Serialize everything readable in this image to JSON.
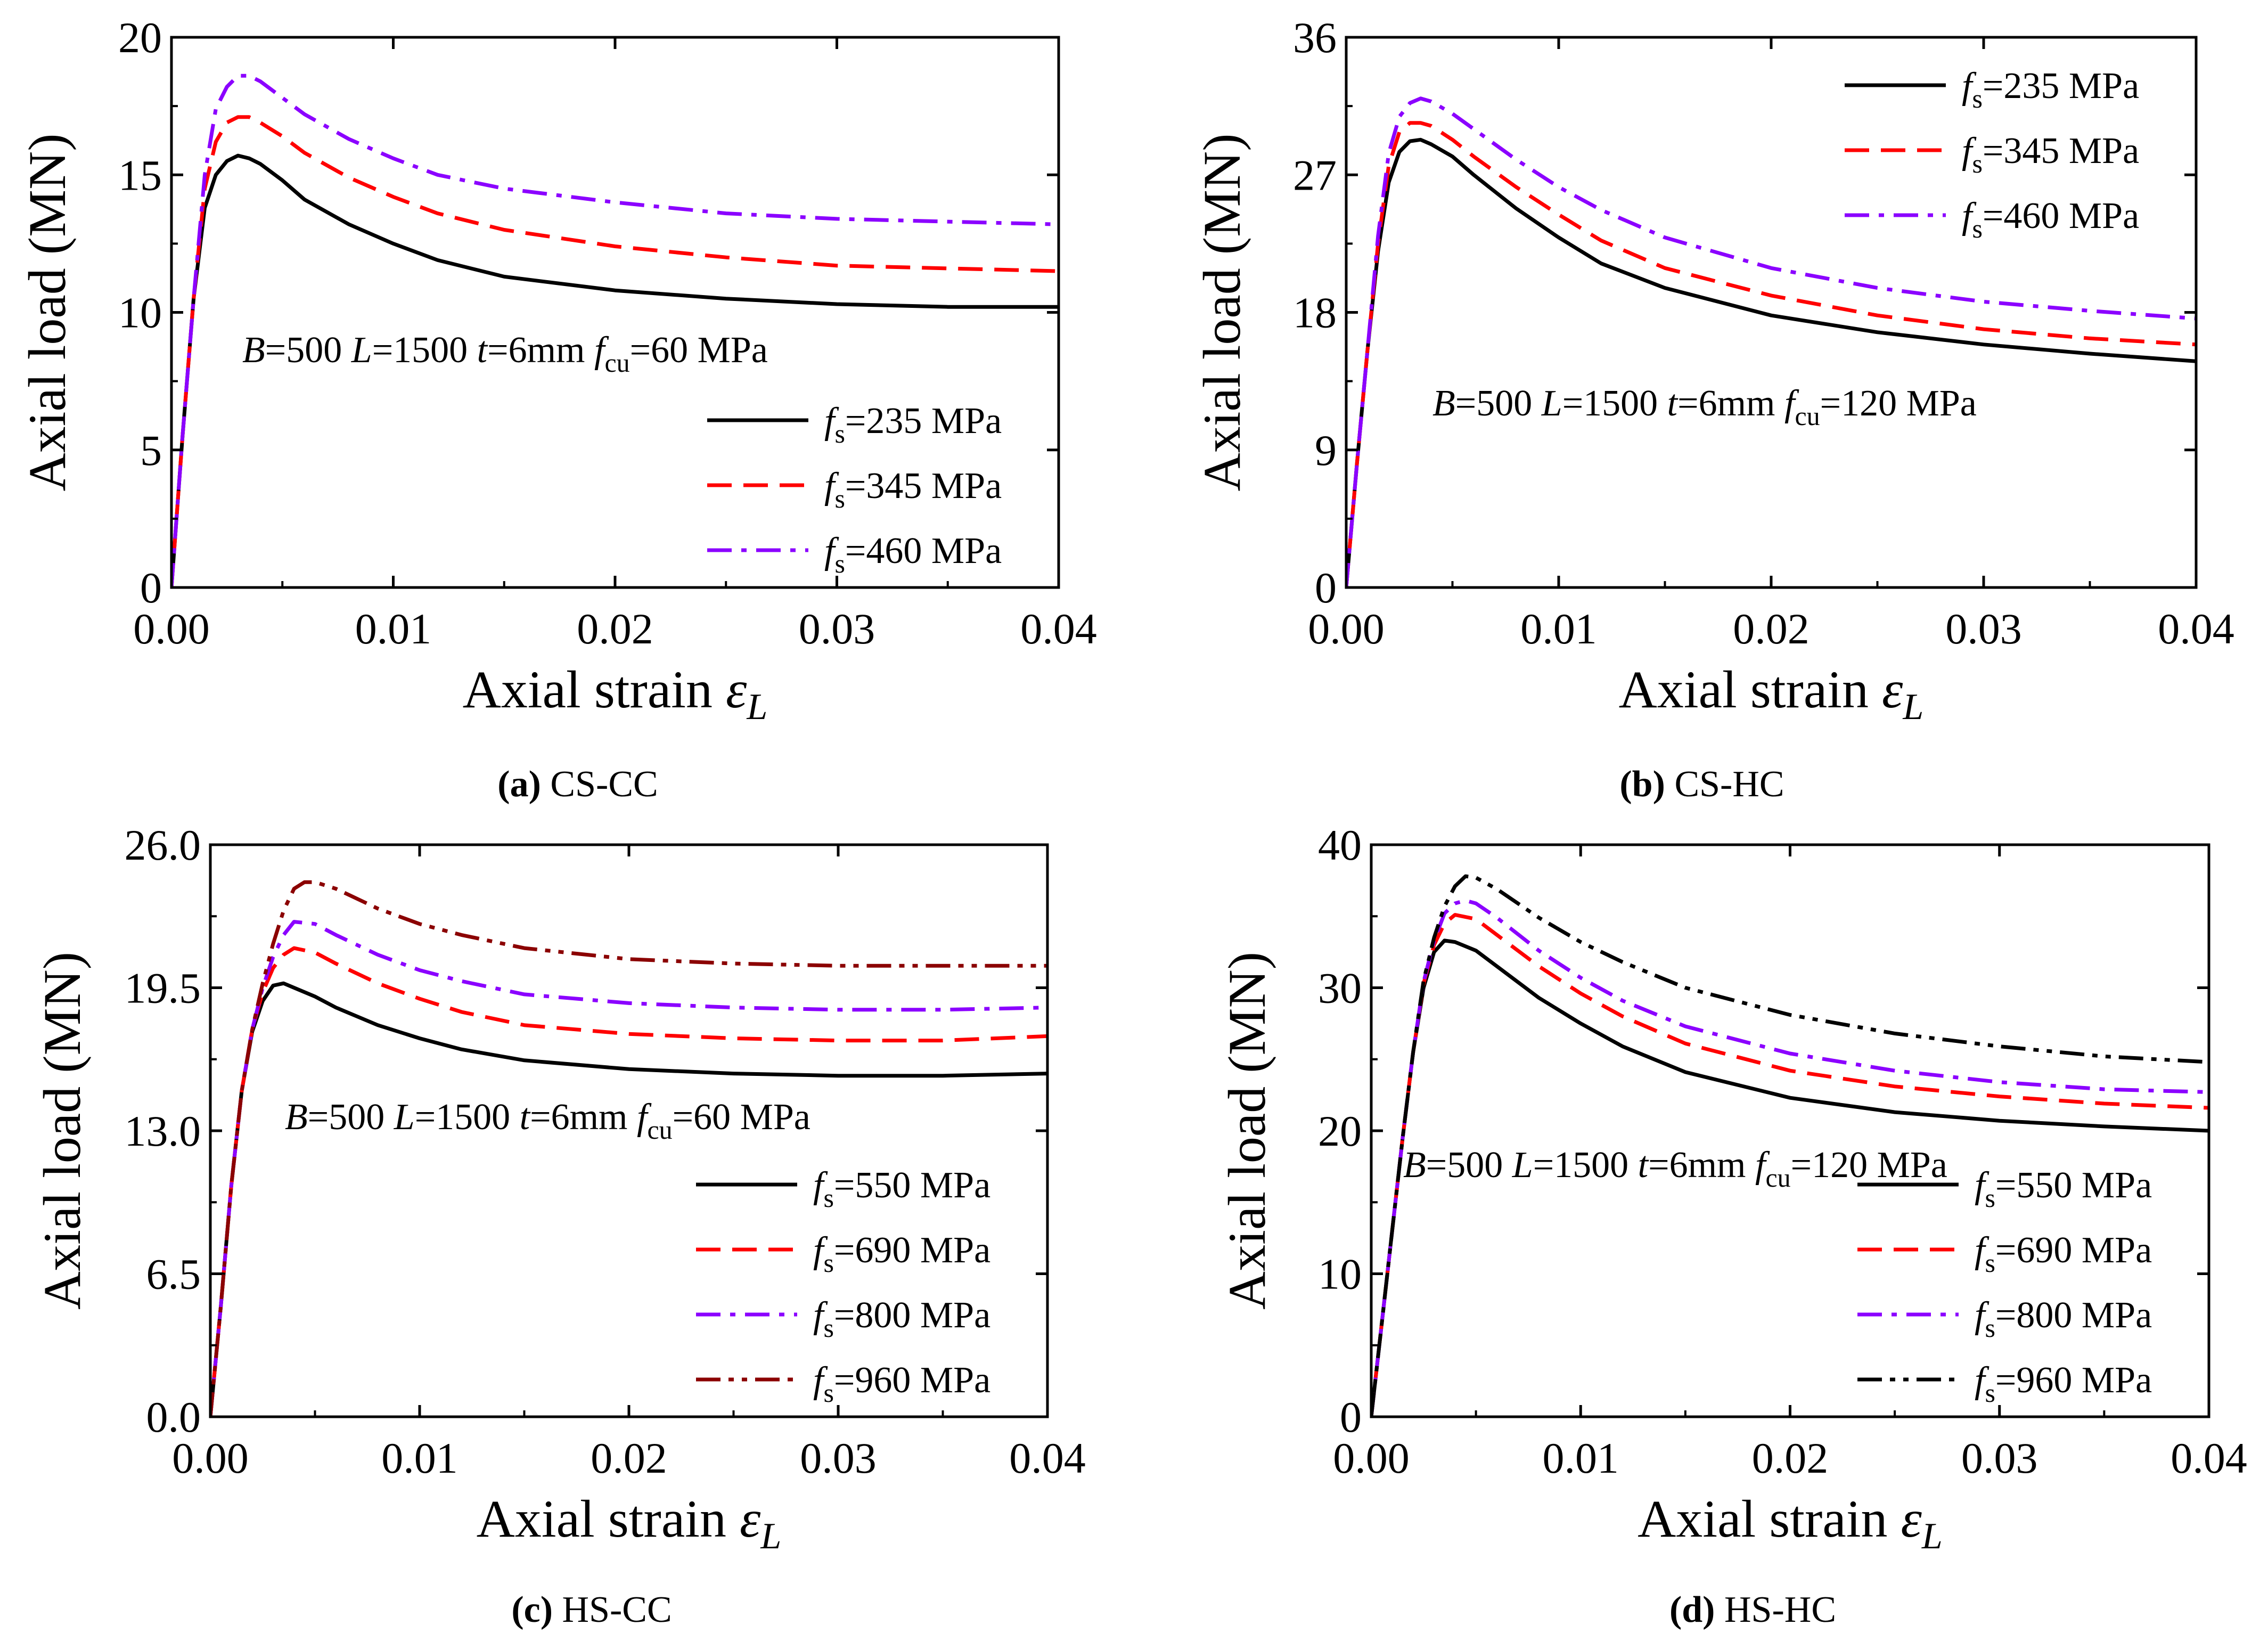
{
  "chart_data": [
    {
      "type": "line",
      "caption_letter": "(a)",
      "caption_text": " CS-CC",
      "xlabel": "Axial strain",
      "xlabel_symbol": "ε",
      "xlabel_sub": "L",
      "ylabel": "Axial load (MN)",
      "xlim": [
        0,
        0.04
      ],
      "ylim": [
        0,
        20
      ],
      "xticks": [
        0,
        0.01,
        0.02,
        0.03,
        0.04
      ],
      "xtick_labels": [
        "0.00",
        "0.01",
        "0.02",
        "0.03",
        "0.04"
      ],
      "yticks": [
        0,
        5,
        10,
        15,
        20
      ],
      "ytick_labels": [
        "0",
        "5",
        "10",
        "15",
        "20"
      ],
      "annotation": {
        "B": "=500  ",
        "L": "=1500  ",
        "t": "=6mm ",
        "f": "f",
        "f_sub": "cu",
        "f_val": "=60 MPa"
      },
      "legend_position": "lower-right",
      "series": [
        {
          "name": "f",
          "sub": "s",
          "value": "=235 MPa",
          "color": "#000000",
          "dash": "solid",
          "x": [
            0,
            0.0005,
            0.001,
            0.0015,
            0.002,
            0.0025,
            0.003,
            0.0035,
            0.004,
            0.005,
            0.006,
            0.008,
            0.01,
            0.012,
            0.015,
            0.02,
            0.025,
            0.03,
            0.035,
            0.04
          ],
          "y": [
            0,
            5.5,
            10.5,
            13.8,
            15.0,
            15.5,
            15.7,
            15.6,
            15.4,
            14.8,
            14.1,
            13.2,
            12.5,
            11.9,
            11.3,
            10.8,
            10.5,
            10.3,
            10.2,
            10.2
          ]
        },
        {
          "name": "f",
          "sub": "s",
          "value": "=345 MPa",
          "color": "#ff0000",
          "dash": "dashed",
          "x": [
            0,
            0.0005,
            0.001,
            0.0015,
            0.002,
            0.0025,
            0.003,
            0.0035,
            0.004,
            0.005,
            0.006,
            0.008,
            0.01,
            0.012,
            0.015,
            0.02,
            0.025,
            0.03,
            0.035,
            0.04
          ],
          "y": [
            0,
            5.5,
            10.5,
            14.5,
            16.2,
            16.9,
            17.1,
            17.1,
            16.9,
            16.4,
            15.8,
            14.9,
            14.2,
            13.6,
            13.0,
            12.4,
            12.0,
            11.7,
            11.6,
            11.5
          ]
        },
        {
          "name": "f",
          "sub": "s",
          "value": "=460 MPa",
          "color": "#8b00ff",
          "dash": "dashdot",
          "x": [
            0,
            0.0005,
            0.001,
            0.0015,
            0.002,
            0.0025,
            0.003,
            0.0035,
            0.004,
            0.005,
            0.006,
            0.008,
            0.01,
            0.012,
            0.015,
            0.02,
            0.025,
            0.03,
            0.035,
            0.04
          ],
          "y": [
            0,
            5.5,
            10.5,
            15.0,
            17.4,
            18.2,
            18.6,
            18.6,
            18.4,
            17.8,
            17.2,
            16.3,
            15.6,
            15.0,
            14.5,
            14.0,
            13.6,
            13.4,
            13.3,
            13.2
          ]
        }
      ]
    },
    {
      "type": "line",
      "caption_letter": "(b)",
      "caption_text": " CS-HC",
      "xlabel": "Axial strain",
      "xlabel_symbol": "ε",
      "xlabel_sub": "L",
      "ylabel": "Axial load (MN)",
      "xlim": [
        0,
        0.04
      ],
      "ylim": [
        0,
        36
      ],
      "xticks": [
        0,
        0.01,
        0.02,
        0.03,
        0.04
      ],
      "xtick_labels": [
        "0.00",
        "0.01",
        "0.02",
        "0.03",
        "0.04"
      ],
      "yticks": [
        0,
        9,
        18,
        27,
        36
      ],
      "ytick_labels": [
        "0",
        "9",
        "18",
        "27",
        "36"
      ],
      "annotation": {
        "B": "=500  ",
        "L": "=1500  ",
        "t": "=6mm ",
        "f": "f",
        "f_sub": "cu",
        "f_val": "=120 MPa"
      },
      "legend_position": "top-right",
      "series": [
        {
          "name": "f",
          "sub": "s",
          "value": "=235 MPa",
          "color": "#000000",
          "dash": "solid",
          "x": [
            0,
            0.0005,
            0.001,
            0.0015,
            0.002,
            0.0025,
            0.003,
            0.0035,
            0.004,
            0.005,
            0.006,
            0.008,
            0.01,
            0.012,
            0.015,
            0.02,
            0.025,
            0.03,
            0.035,
            0.04
          ],
          "y": [
            0,
            8.0,
            15.5,
            22.0,
            26.5,
            28.5,
            29.2,
            29.3,
            29.0,
            28.2,
            27.0,
            24.8,
            22.9,
            21.2,
            19.6,
            17.8,
            16.7,
            15.9,
            15.3,
            14.8
          ]
        },
        {
          "name": "f",
          "sub": "s",
          "value": "=345 MPa",
          "color": "#ff0000",
          "dash": "dashed",
          "x": [
            0,
            0.0005,
            0.001,
            0.0015,
            0.002,
            0.0025,
            0.003,
            0.0035,
            0.004,
            0.005,
            0.006,
            0.008,
            0.01,
            0.012,
            0.015,
            0.02,
            0.025,
            0.03,
            0.035,
            0.04
          ],
          "y": [
            0,
            8.0,
            15.5,
            22.5,
            27.6,
            29.8,
            30.4,
            30.4,
            30.2,
            29.3,
            28.2,
            26.2,
            24.4,
            22.7,
            20.9,
            19.1,
            17.8,
            16.9,
            16.3,
            15.9
          ]
        },
        {
          "name": "f",
          "sub": "s",
          "value": "=460 MPa",
          "color": "#8b00ff",
          "dash": "dashdot",
          "x": [
            0,
            0.0005,
            0.001,
            0.0015,
            0.002,
            0.0025,
            0.003,
            0.0035,
            0.004,
            0.005,
            0.006,
            0.008,
            0.01,
            0.012,
            0.015,
            0.02,
            0.025,
            0.03,
            0.035,
            0.04
          ],
          "y": [
            0,
            8.0,
            15.5,
            23.0,
            28.4,
            30.8,
            31.7,
            32.0,
            31.8,
            31.0,
            30.0,
            28.0,
            26.2,
            24.7,
            22.9,
            20.9,
            19.6,
            18.7,
            18.1,
            17.6
          ]
        }
      ]
    },
    {
      "type": "line",
      "caption_letter": "(c)",
      "caption_text": " HS-CC",
      "xlabel": "Axial strain",
      "xlabel_symbol": "ε",
      "xlabel_sub": "L",
      "ylabel": "Axial load (MN)",
      "xlim": [
        0,
        0.04
      ],
      "ylim": [
        0,
        26
      ],
      "xticks": [
        0,
        0.01,
        0.02,
        0.03,
        0.04
      ],
      "xtick_labels": [
        "0.00",
        "0.01",
        "0.02",
        "0.03",
        "0.04"
      ],
      "yticks": [
        0,
        6.5,
        13,
        19.5,
        26
      ],
      "ytick_labels": [
        "0.0",
        "6.5",
        "13.0",
        "19.5",
        "26.0"
      ],
      "annotation": {
        "B": "=500  ",
        "L": "=1500  ",
        "t": "=6mm ",
        "f": "f",
        "f_sub": "cu",
        "f_val": "=60 MPa"
      },
      "legend_position": "lower-right",
      "series": [
        {
          "name": "f",
          "sub": "s",
          "value": "=550 MPa",
          "color": "#000000",
          "dash": "solid",
          "x": [
            0,
            0.0005,
            0.001,
            0.0015,
            0.002,
            0.0025,
            0.003,
            0.0035,
            0.004,
            0.005,
            0.006,
            0.008,
            0.01,
            0.012,
            0.015,
            0.02,
            0.025,
            0.03,
            0.035,
            0.04
          ],
          "y": [
            0,
            5.0,
            10.5,
            14.8,
            17.5,
            18.9,
            19.6,
            19.7,
            19.5,
            19.1,
            18.6,
            17.8,
            17.2,
            16.7,
            16.2,
            15.8,
            15.6,
            15.5,
            15.5,
            15.6
          ]
        },
        {
          "name": "f",
          "sub": "s",
          "value": "=690 MPa",
          "color": "#ff0000",
          "dash": "dashed",
          "x": [
            0,
            0.0005,
            0.001,
            0.0015,
            0.002,
            0.0025,
            0.003,
            0.0035,
            0.004,
            0.005,
            0.006,
            0.008,
            0.01,
            0.012,
            0.015,
            0.02,
            0.025,
            0.03,
            0.035,
            0.04
          ],
          "y": [
            0,
            5.0,
            10.5,
            14.8,
            17.6,
            19.3,
            20.4,
            21.0,
            21.3,
            21.1,
            20.6,
            19.7,
            19.0,
            18.4,
            17.8,
            17.4,
            17.2,
            17.1,
            17.1,
            17.3
          ]
        },
        {
          "name": "f",
          "sub": "s",
          "value": "=800 MPa",
          "color": "#8b00ff",
          "dash": "dashdot",
          "x": [
            0,
            0.0005,
            0.001,
            0.0015,
            0.002,
            0.0025,
            0.003,
            0.0035,
            0.004,
            0.005,
            0.006,
            0.008,
            0.01,
            0.012,
            0.015,
            0.02,
            0.025,
            0.03,
            0.035,
            0.04
          ],
          "y": [
            0,
            5.0,
            10.5,
            14.8,
            17.6,
            19.5,
            20.9,
            21.9,
            22.5,
            22.4,
            21.9,
            21.0,
            20.3,
            19.8,
            19.2,
            18.8,
            18.6,
            18.5,
            18.5,
            18.6
          ]
        },
        {
          "name": "f",
          "sub": "s",
          "value": "=960 MPa",
          "color": "#8b0000",
          "dash": "dashdotdot",
          "x": [
            0,
            0.0005,
            0.001,
            0.0015,
            0.002,
            0.0025,
            0.003,
            0.0035,
            0.004,
            0.0045,
            0.005,
            0.006,
            0.008,
            0.01,
            0.012,
            0.015,
            0.02,
            0.025,
            0.03,
            0.035,
            0.04
          ],
          "y": [
            0,
            5.0,
            10.5,
            14.8,
            17.6,
            19.7,
            21.5,
            23.0,
            24.0,
            24.3,
            24.3,
            24.0,
            23.1,
            22.4,
            21.9,
            21.3,
            20.8,
            20.6,
            20.5,
            20.5,
            20.5
          ]
        }
      ]
    },
    {
      "type": "line",
      "caption_letter": "(d)",
      "caption_text": " HS-HC",
      "xlabel": "Axial strain",
      "xlabel_symbol": "ε",
      "xlabel_sub": "L",
      "ylabel": "Axial load (MN)",
      "xlim": [
        0,
        0.04
      ],
      "ylim": [
        0,
        40
      ],
      "xticks": [
        0,
        0.01,
        0.02,
        0.03,
        0.04
      ],
      "xtick_labels": [
        "0.00",
        "0.01",
        "0.02",
        "0.03",
        "0.04"
      ],
      "yticks": [
        0,
        10,
        20,
        30,
        40
      ],
      "ytick_labels": [
        "0",
        "10",
        "20",
        "30",
        "40"
      ],
      "annotation": {
        "B": "=500  ",
        "L": "=1500  ",
        "t": "=6mm ",
        "f": "f",
        "f_sub": "cu",
        "f_val": "=120 MPa"
      },
      "legend_position": "lower-right",
      "series": [
        {
          "name": "f",
          "sub": "s",
          "value": "=550 MPa",
          "color": "#000000",
          "dash": "solid",
          "x": [
            0,
            0.0005,
            0.001,
            0.0015,
            0.002,
            0.0025,
            0.003,
            0.0035,
            0.004,
            0.005,
            0.006,
            0.008,
            0.01,
            0.012,
            0.015,
            0.02,
            0.025,
            0.03,
            0.035,
            0.04
          ],
          "y": [
            0,
            6.5,
            13.0,
            19.5,
            25.5,
            30.0,
            32.5,
            33.3,
            33.2,
            32.6,
            31.5,
            29.3,
            27.5,
            25.9,
            24.1,
            22.3,
            21.3,
            20.7,
            20.3,
            20.0
          ]
        },
        {
          "name": "f",
          "sub": "s",
          "value": "=690 MPa",
          "color": "#ff0000",
          "dash": "dashed",
          "x": [
            0,
            0.0005,
            0.001,
            0.0015,
            0.002,
            0.0025,
            0.003,
            0.0035,
            0.004,
            0.005,
            0.006,
            0.008,
            0.01,
            0.012,
            0.015,
            0.02,
            0.025,
            0.03,
            0.035,
            0.04
          ],
          "y": [
            0,
            6.5,
            13.0,
            19.5,
            25.5,
            30.3,
            33.0,
            34.5,
            35.1,
            34.8,
            33.7,
            31.5,
            29.6,
            28.0,
            26.1,
            24.2,
            23.1,
            22.4,
            21.9,
            21.6
          ]
        },
        {
          "name": "f",
          "sub": "s",
          "value": "=800 MPa",
          "color": "#8b00ff",
          "dash": "dashdot",
          "x": [
            0,
            0.0005,
            0.001,
            0.0015,
            0.002,
            0.0025,
            0.003,
            0.0035,
            0.004,
            0.0045,
            0.005,
            0.006,
            0.008,
            0.01,
            0.012,
            0.015,
            0.02,
            0.025,
            0.03,
            0.035,
            0.04
          ],
          "y": [
            0,
            6.5,
            13.0,
            19.5,
            25.5,
            30.4,
            33.3,
            35.2,
            35.9,
            36.1,
            35.9,
            34.9,
            32.6,
            30.7,
            29.1,
            27.3,
            25.4,
            24.2,
            23.4,
            22.9,
            22.7
          ]
        },
        {
          "name": "f",
          "sub": "s",
          "value": "=960 MPa",
          "color": "#000000",
          "dash": "dashdotdot",
          "x": [
            0,
            0.0005,
            0.001,
            0.0015,
            0.002,
            0.0025,
            0.003,
            0.0035,
            0.004,
            0.0045,
            0.005,
            0.006,
            0.008,
            0.01,
            0.012,
            0.015,
            0.02,
            0.025,
            0.03,
            0.035,
            0.04
          ],
          "y": [
            0,
            6.5,
            13.0,
            19.5,
            25.5,
            30.5,
            33.5,
            35.7,
            37.1,
            37.8,
            37.7,
            36.9,
            34.9,
            33.2,
            31.8,
            30.0,
            28.1,
            26.8,
            25.9,
            25.2,
            24.8
          ]
        }
      ]
    }
  ]
}
